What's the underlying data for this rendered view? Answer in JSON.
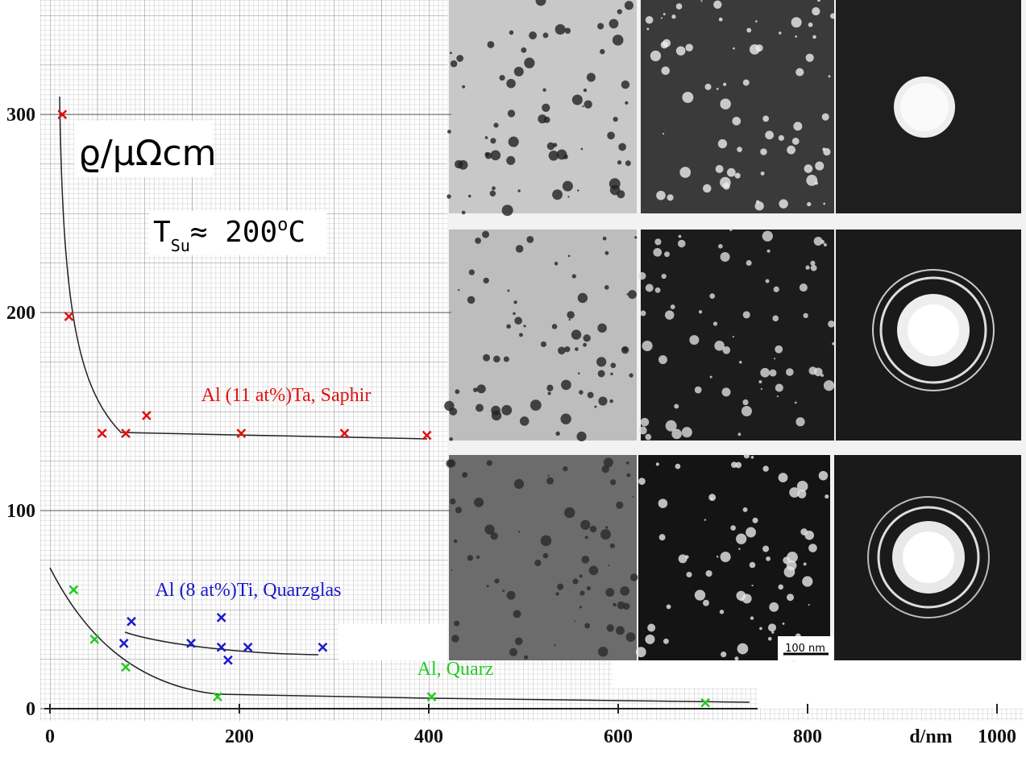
{
  "chart_data": {
    "type": "scatter",
    "y_label": "ϱ/μΩcm",
    "x_label": "d/nm",
    "condition": {
      "symbol": "T",
      "subscript": "Su",
      "relation": "≈ 200",
      "degree": "o",
      "unit": "C"
    },
    "scale_bar": "100 nm",
    "xlim": [
      0,
      1000
    ],
    "xticks": [
      0,
      200,
      400,
      600,
      800,
      1000
    ],
    "ylim": [
      0,
      357
    ],
    "yticks": [
      0,
      100,
      200,
      300
    ],
    "grid": true,
    "marker": "x",
    "series": [
      {
        "name": "Al (11 at%)Ta, Saphir",
        "color": "#e01010",
        "x": [
          13,
          20,
          55,
          80,
          102,
          202,
          311,
          398
        ],
        "values": [
          300,
          198,
          139,
          139,
          148,
          139,
          139,
          138
        ]
      },
      {
        "name": "Al (8 at%)Ti, Quarzglas",
        "color": "#1a1acc",
        "x": [
          86,
          78,
          149,
          181,
          181,
          188,
          209,
          288
        ],
        "values": [
          44,
          33,
          33,
          46,
          31,
          24.5,
          31,
          31
        ]
      },
      {
        "name": "Al, Quarz",
        "color": "#22cc22",
        "x": [
          25,
          47,
          80,
          177,
          403,
          692
        ],
        "values": [
          60,
          35,
          21,
          6,
          6,
          3
        ]
      }
    ]
  }
}
